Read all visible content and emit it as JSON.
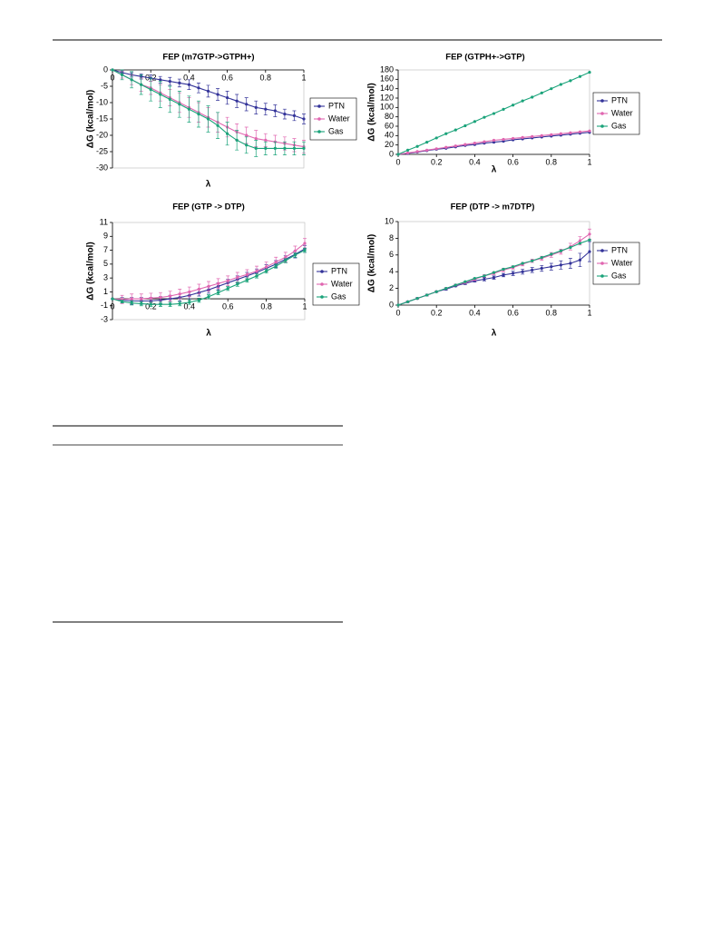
{
  "chart_data": [
    {
      "type": "line",
      "title": "FEP (m7GTP->GTPH+)",
      "x_label": "λ",
      "y_label": "ΔG (kcal/mol)",
      "x": [
        0,
        0.05,
        0.1,
        0.15,
        0.2,
        0.25,
        0.3,
        0.35,
        0.4,
        0.45,
        0.5,
        0.55,
        0.6,
        0.65,
        0.7,
        0.75,
        0.8,
        0.85,
        0.9,
        0.95,
        1
      ],
      "xlim": [
        0,
        1
      ],
      "xticks": [
        0,
        0.2,
        0.4,
        0.6,
        0.8,
        1
      ],
      "ylim": [
        -30,
        0
      ],
      "yticks": [
        0,
        -5,
        -10,
        -15,
        -20,
        -25,
        -30
      ],
      "series": [
        {
          "name": "PTN",
          "color": "#333399",
          "values": [
            0,
            -0.8,
            -1.5,
            -2,
            -2.5,
            -3,
            -3.5,
            -4,
            -4.5,
            -5.5,
            -6.5,
            -7.5,
            -8.5,
            -9.5,
            -10.5,
            -11.5,
            -12,
            -12.5,
            -13.5,
            -14,
            -15
          ],
          "errors": [
            0,
            0.5,
            0.7,
            0.8,
            1,
            1,
            1.2,
            1.2,
            1.5,
            1.5,
            1.8,
            1.8,
            2,
            2,
            2,
            2,
            1.8,
            1.8,
            1.5,
            1.5,
            1.5
          ]
        },
        {
          "name": "Water",
          "color": "#e066b0",
          "values": [
            0,
            -1.5,
            -3,
            -4.5,
            -5.5,
            -7,
            -8.5,
            -10,
            -11.5,
            -13,
            -14.5,
            -16,
            -17.5,
            -19,
            -20,
            -21,
            -21.5,
            -22,
            -22.5,
            -23,
            -23.5
          ],
          "errors": [
            0,
            1,
            1.5,
            2,
            2,
            2.5,
            2.5,
            3,
            3,
            3,
            3,
            3,
            3,
            2.5,
            2.5,
            2.5,
            2,
            2,
            2,
            2,
            2
          ]
        },
        {
          "name": "Gas",
          "color": "#1aa37a",
          "values": [
            0,
            -1.5,
            -3,
            -4.5,
            -6,
            -7.5,
            -9,
            -10.5,
            -12,
            -13.5,
            -15,
            -17,
            -19.5,
            -21.5,
            -23,
            -24,
            -24,
            -24,
            -24,
            -24,
            -24
          ],
          "errors": [
            0,
            1.5,
            2.5,
            3,
            3.5,
            4,
            4,
            4,
            4,
            4,
            4,
            4,
            3.5,
            3,
            2.5,
            2.5,
            2,
            2,
            2,
            2,
            2
          ]
        }
      ]
    },
    {
      "type": "line",
      "title": "FEP (GTPH+->GTP)",
      "x_label": "λ",
      "y_label": "ΔG (kcal/mol)",
      "x": [
        0,
        0.05,
        0.1,
        0.15,
        0.2,
        0.25,
        0.3,
        0.35,
        0.4,
        0.45,
        0.5,
        0.55,
        0.6,
        0.65,
        0.7,
        0.75,
        0.8,
        0.85,
        0.9,
        0.95,
        1
      ],
      "xlim": [
        0,
        1
      ],
      "xticks": [
        0,
        0.2,
        0.4,
        0.6,
        0.8,
        1
      ],
      "ylim": [
        0,
        180
      ],
      "yticks": [
        0,
        20,
        40,
        60,
        80,
        100,
        120,
        140,
        160,
        180
      ],
      "series": [
        {
          "name": "PTN",
          "color": "#333399",
          "values": [
            0,
            2,
            5,
            8,
            11,
            13,
            16,
            19,
            21,
            24,
            26,
            28,
            31,
            33,
            35,
            37,
            39,
            41,
            43,
            45,
            47
          ]
        },
        {
          "name": "Water",
          "color": "#e066b0",
          "values": [
            0,
            3,
            6,
            9,
            12,
            15,
            18,
            21,
            24,
            27,
            30,
            32,
            34,
            36,
            38,
            40,
            42,
            44,
            46,
            48,
            50
          ]
        },
        {
          "name": "Gas",
          "color": "#1aa37a",
          "values": [
            0,
            9,
            17,
            26,
            35,
            44,
            52,
            61,
            70,
            79,
            87,
            96,
            105,
            114,
            122,
            131,
            140,
            149,
            157,
            166,
            175
          ]
        }
      ]
    },
    {
      "type": "line",
      "title": "FEP (GTP -> DTP)",
      "x_label": "λ",
      "y_label": "ΔG (kcal/mol)",
      "x": [
        0,
        0.05,
        0.1,
        0.15,
        0.2,
        0.25,
        0.3,
        0.35,
        0.4,
        0.45,
        0.5,
        0.55,
        0.6,
        0.65,
        0.7,
        0.75,
        0.8,
        0.85,
        0.9,
        0.95,
        1
      ],
      "xlim": [
        0,
        1
      ],
      "xticks": [
        0,
        0.2,
        0.4,
        0.6,
        0.8,
        1
      ],
      "ylim": [
        -3,
        11
      ],
      "yticks": [
        -3,
        -1,
        1,
        3,
        5,
        7,
        9,
        11
      ],
      "series": [
        {
          "name": "PTN",
          "color": "#333399",
          "values": [
            0,
            -0.2,
            -0.3,
            -0.3,
            -0.3,
            -0.2,
            0,
            0.2,
            0.5,
            0.9,
            1.3,
            1.8,
            2.3,
            2.8,
            3.3,
            3.8,
            4.4,
            5,
            5.7,
            6.4,
            7.2
          ],
          "errors": [
            0,
            0.4,
            0.5,
            0.5,
            0.5,
            0.5,
            0.5,
            0.5,
            0.5,
            0.5,
            0.5,
            0.5,
            0.5,
            0.5,
            0.5,
            0.5,
            0.5,
            0.5,
            0.5,
            0.5,
            0.5
          ]
        },
        {
          "name": "Water",
          "color": "#e066b0",
          "values": [
            0,
            -0.1,
            0,
            0,
            0.1,
            0.2,
            0.4,
            0.7,
            1,
            1.4,
            1.8,
            2.2,
            2.6,
            3.1,
            3.5,
            4,
            4.6,
            5.3,
            6,
            6.9,
            8
          ],
          "errors": [
            0,
            0.6,
            0.7,
            0.7,
            0.7,
            0.7,
            0.7,
            0.7,
            0.7,
            0.7,
            0.7,
            0.7,
            0.7,
            0.7,
            0.7,
            0.7,
            0.7,
            0.7,
            0.7,
            0.7,
            0.7
          ]
        },
        {
          "name": "Gas",
          "color": "#1aa37a",
          "values": [
            0,
            -0.4,
            -0.6,
            -0.7,
            -0.8,
            -0.8,
            -0.8,
            -0.7,
            -0.5,
            -0.2,
            0.3,
            0.9,
            1.5,
            2.1,
            2.7,
            3.3,
            4,
            4.7,
            5.5,
            6.3,
            7
          ],
          "errors": [
            0,
            0.2,
            0.3,
            0.3,
            0.3,
            0.3,
            0.3,
            0.3,
            0.3,
            0.3,
            0.3,
            0.3,
            0.3,
            0.3,
            0.3,
            0.3,
            0.3,
            0.3,
            0.3,
            0.3,
            0.3
          ]
        }
      ]
    },
    {
      "type": "line",
      "title": "FEP (DTP -> m7DTP)",
      "x_label": "λ",
      "y_label": "ΔG (kcal/mol)",
      "x": [
        0,
        0.05,
        0.1,
        0.15,
        0.2,
        0.25,
        0.3,
        0.35,
        0.4,
        0.45,
        0.5,
        0.55,
        0.6,
        0.65,
        0.7,
        0.75,
        0.8,
        0.85,
        0.9,
        0.95,
        1
      ],
      "xlim": [
        0,
        1
      ],
      "xticks": [
        0,
        0.2,
        0.4,
        0.6,
        0.8,
        1
      ],
      "ylim": [
        0,
        10
      ],
      "yticks": [
        0,
        2,
        4,
        6,
        8,
        10
      ],
      "series": [
        {
          "name": "PTN",
          "color": "#333399",
          "values": [
            0,
            0.4,
            0.8,
            1.2,
            1.6,
            1.9,
            2.3,
            2.6,
            2.9,
            3.1,
            3.3,
            3.6,
            3.8,
            4,
            4.2,
            4.4,
            4.6,
            4.8,
            5,
            5.4,
            6.4
          ],
          "errors": [
            0,
            0.1,
            0.1,
            0.1,
            0.1,
            0.1,
            0.1,
            0.15,
            0.15,
            0.2,
            0.2,
            0.2,
            0.25,
            0.3,
            0.3,
            0.35,
            0.4,
            0.5,
            0.6,
            0.8,
            1.2
          ]
        },
        {
          "name": "Water",
          "color": "#e066b0",
          "values": [
            0,
            0.4,
            0.8,
            1.2,
            1.6,
            2,
            2.4,
            2.7,
            3.1,
            3.5,
            3.8,
            4.2,
            4.5,
            4.9,
            5.3,
            5.6,
            6,
            6.4,
            7,
            7.7,
            8.5
          ],
          "errors": [
            0,
            0.1,
            0.1,
            0.1,
            0.1,
            0.1,
            0.1,
            0.1,
            0.15,
            0.15,
            0.15,
            0.2,
            0.2,
            0.2,
            0.2,
            0.25,
            0.3,
            0.3,
            0.4,
            0.5,
            0.6
          ]
        },
        {
          "name": "Gas",
          "color": "#1aa37a",
          "values": [
            0,
            0.4,
            0.8,
            1.2,
            1.6,
            2,
            2.4,
            2.8,
            3.2,
            3.5,
            3.9,
            4.3,
            4.6,
            5,
            5.3,
            5.7,
            6.1,
            6.5,
            6.9,
            7.4,
            7.8
          ]
        }
      ]
    }
  ]
}
